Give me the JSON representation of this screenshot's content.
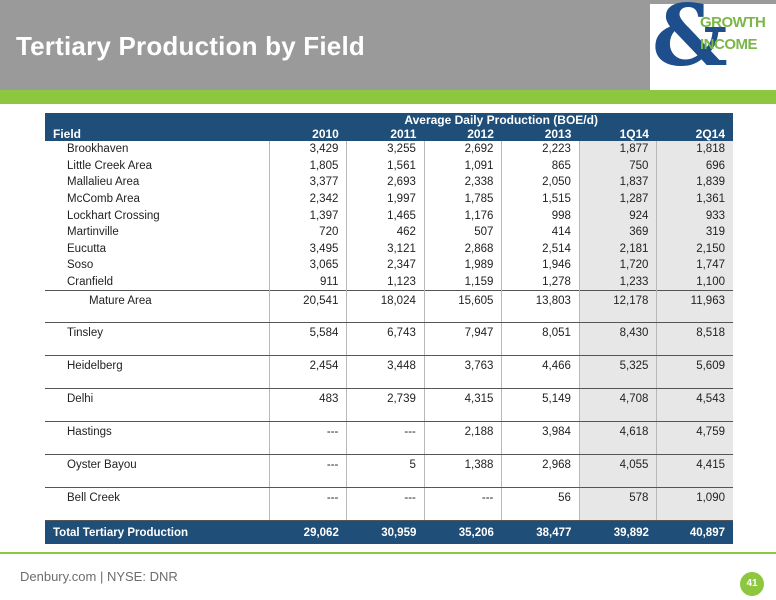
{
  "slide": {
    "title": "Tertiary Production by Field",
    "footer": "Denbury.com | NYSE: DNR",
    "page_number": "41"
  },
  "logo": {
    "symbol": "&",
    "line1": "GROWTH",
    "line2": "INCOME"
  },
  "colors": {
    "header_gray": "#9a9a9a",
    "accent_green": "#8dc63f",
    "table_navy": "#1f4e79"
  },
  "table": {
    "group_header": "Average Daily Production (BOE/d)",
    "field_header": "Field",
    "columns": [
      "2010",
      "2011",
      "2012",
      "2013",
      "1Q14",
      "2Q14"
    ],
    "rows": [
      {
        "field": "Brookhaven",
        "values": [
          "3,429",
          "3,255",
          "2,692",
          "2,223",
          "1,877",
          "1,818"
        ]
      },
      {
        "field": "Little Creek Area",
        "values": [
          "1,805",
          "1,561",
          "1,091",
          "865",
          "750",
          "696"
        ]
      },
      {
        "field": "Mallalieu Area",
        "values": [
          "3,377",
          "2,693",
          "2,338",
          "2,050",
          "1,837",
          "1,839"
        ]
      },
      {
        "field": "McComb Area",
        "values": [
          "2,342",
          "1,997",
          "1,785",
          "1,515",
          "1,287",
          "1,361"
        ]
      },
      {
        "field": "Lockhart Crossing",
        "values": [
          "1,397",
          "1,465",
          "1,176",
          "998",
          "924",
          "933"
        ]
      },
      {
        "field": "Martinville",
        "values": [
          "720",
          "462",
          "507",
          "414",
          "369",
          "319"
        ]
      },
      {
        "field": "Eucutta",
        "values": [
          "3,495",
          "3,121",
          "2,868",
          "2,514",
          "2,181",
          "2,150"
        ]
      },
      {
        "field": "Soso",
        "values": [
          "3,065",
          "2,347",
          "1,989",
          "1,946",
          "1,720",
          "1,747"
        ]
      },
      {
        "field": "Cranfield",
        "values": [
          "911",
          "1,123",
          "1,159",
          "1,278",
          "1,233",
          "1,100"
        ]
      }
    ],
    "mature": {
      "field": "Mature Area",
      "values": [
        "20,541",
        "18,024",
        "15,605",
        "13,803",
        "12,178",
        "11,963"
      ]
    },
    "big_fields": [
      {
        "field": "Tinsley",
        "values": [
          "5,584",
          "6,743",
          "7,947",
          "8,051",
          "8,430",
          "8,518"
        ]
      },
      {
        "field": "Heidelberg",
        "values": [
          "2,454",
          "3,448",
          "3,763",
          "4,466",
          "5,325",
          "5,609"
        ]
      },
      {
        "field": "Delhi",
        "values": [
          "483",
          "2,739",
          "4,315",
          "5,149",
          "4,708",
          "4,543"
        ]
      },
      {
        "field": "Hastings",
        "values": [
          "---",
          "---",
          "2,188",
          "3,984",
          "4,618",
          "4,759"
        ]
      },
      {
        "field": "Oyster Bayou",
        "values": [
          "---",
          "5",
          "1,388",
          "2,968",
          "4,055",
          "4,415"
        ]
      },
      {
        "field": "Bell Creek",
        "values": [
          "---",
          "---",
          "---",
          "56",
          "578",
          "1,090"
        ]
      }
    ],
    "total": {
      "field": "Total Tertiary Production",
      "values": [
        "29,062",
        "30,959",
        "35,206",
        "38,477",
        "39,892",
        "40,897"
      ]
    }
  }
}
